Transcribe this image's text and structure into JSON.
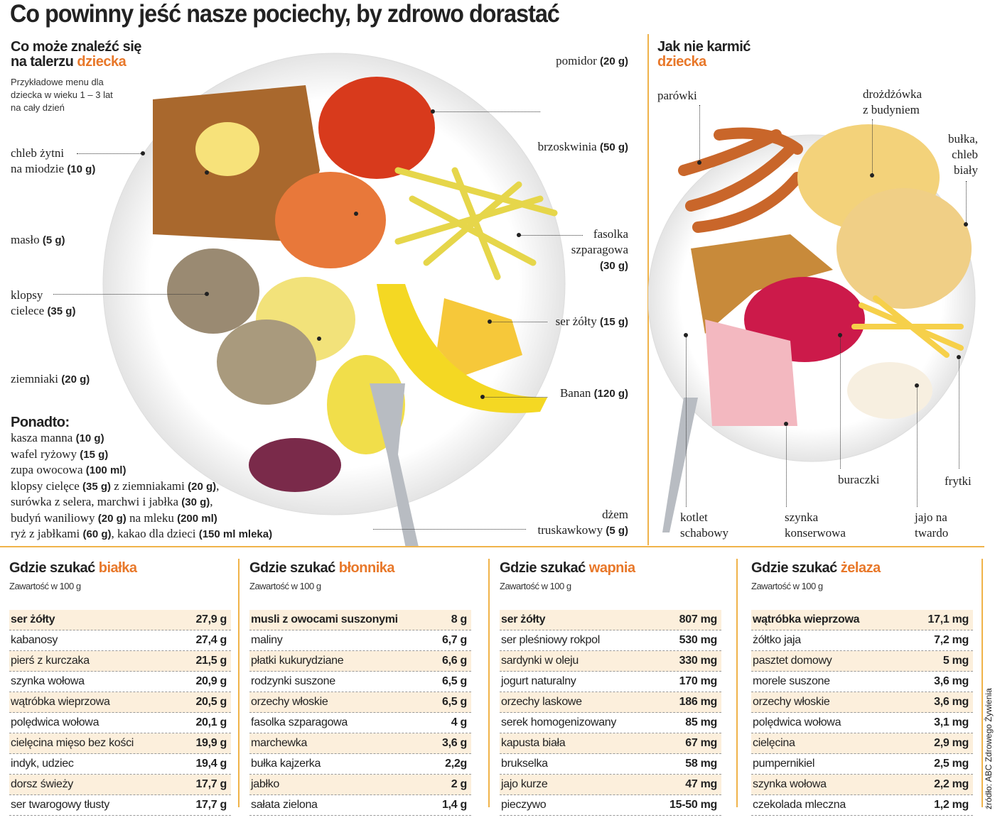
{
  "title": "Co powinny jeść nasze pociechy, by zdrowo dorastać",
  "left": {
    "heading_line1": "Co może znaleźć się",
    "heading_line2": "na talerzu ",
    "heading_accent": "dziecka",
    "subtitle": [
      "Przykładowe menu dla",
      "dziecka w wieku 1 – 3 lat",
      "na cały dzień"
    ],
    "labels": [
      {
        "text": "chleb żytni",
        "text2": "na miodzie",
        "amount": "(10 g)"
      },
      {
        "text": "masło",
        "amount": "(5 g)"
      },
      {
        "text": "klopsy",
        "text2": "cielece",
        "amount": "(35 g)"
      },
      {
        "text": "ziemniaki",
        "amount": "(20 g)"
      },
      {
        "text": "pomidor",
        "amount": "(20 g)"
      },
      {
        "text": "brzoskwinia",
        "amount": "(50 g)"
      },
      {
        "text": "fasolka",
        "text2": "szparagowa",
        "amount": "(30 g)"
      },
      {
        "text": "ser żółty",
        "amount": "(15 g)"
      },
      {
        "text": "Banan",
        "amount": "(120 g)"
      },
      {
        "text": "dżem",
        "text2": "truskawkowy",
        "amount": "(5 g)"
      }
    ],
    "extra_heading": "Ponadto:",
    "extra": [
      [
        [
          "kasza manna ",
          ""
        ],
        [
          "(10 g)",
          "b"
        ]
      ],
      [
        [
          "wafel ryżowy ",
          ""
        ],
        [
          "(15 g)",
          "b"
        ]
      ],
      [
        [
          "zupa owocowa ",
          ""
        ],
        [
          "(100 ml)",
          "b"
        ]
      ],
      [
        [
          "klopsy cielęce ",
          ""
        ],
        [
          "(35 g)",
          "b"
        ],
        [
          " z ziemniakami ",
          ""
        ],
        [
          "(20 g)",
          "b"
        ],
        [
          ",",
          ""
        ]
      ],
      [
        [
          "surówka z selera, marchwi i jabłka ",
          ""
        ],
        [
          "(30 g)",
          "b"
        ],
        [
          ",",
          ""
        ]
      ],
      [
        [
          "budyń waniliowy ",
          ""
        ],
        [
          "(20 g)",
          "b"
        ],
        [
          " na mleku ",
          ""
        ],
        [
          "(200 ml)",
          "b"
        ]
      ],
      [
        [
          "ryż z jabłkami ",
          ""
        ],
        [
          "(60 g)",
          "b"
        ],
        [
          ", kakao dla dzieci ",
          ""
        ],
        [
          "(150 ml mleka)",
          "b"
        ]
      ]
    ]
  },
  "right": {
    "heading_line1": "Jak nie karmić",
    "heading_accent": "dziecka",
    "labels": {
      "parowki": "parówki",
      "drozdzowka": [
        "drożdżówka",
        "z budyniem"
      ],
      "bulka": [
        "bułka,",
        "chleb",
        "biały"
      ],
      "buraczki": "buraczki",
      "frytki": "frytki",
      "kotlet": [
        "kotlet",
        "schabowy"
      ],
      "szynka": [
        "szynka",
        "konserwowa"
      ],
      "jajo": [
        "jajo na",
        "twardo"
      ]
    }
  },
  "tables": [
    {
      "prefix": "Gdzie szukać ",
      "accent": "białka",
      "subtitle": "Zawartość w 100 g",
      "rows": [
        [
          "ser żółty",
          "27,9 g"
        ],
        [
          "kabanosy",
          "27,4 g"
        ],
        [
          "pierś z kurczaka",
          "21,5 g"
        ],
        [
          "szynka wołowa",
          "20,9 g"
        ],
        [
          "wątróbka wieprzowa",
          "20,5 g"
        ],
        [
          "polędwica wołowa",
          "20,1 g"
        ],
        [
          "cielęcina mięso bez kości",
          "19,9 g"
        ],
        [
          "indyk, udziec",
          "19,4 g"
        ],
        [
          "dorsz świeży",
          "17,7 g"
        ],
        [
          "ser twarogowy tłusty",
          "17,7 g"
        ]
      ]
    },
    {
      "prefix": "Gdzie szukać ",
      "accent": "błonnika",
      "subtitle": "Zawartość w 100 g",
      "rows": [
        [
          "musli z owocami suszonymi",
          "8 g"
        ],
        [
          "maliny",
          "6,7 g"
        ],
        [
          "płatki kukurydziane",
          "6,6 g"
        ],
        [
          "rodzynki suszone",
          "6,5 g"
        ],
        [
          "orzechy włoskie",
          "6,5 g"
        ],
        [
          "fasolka szparagowa",
          "4 g"
        ],
        [
          "marchewka",
          "3,6 g"
        ],
        [
          "bułka kajzerka",
          "2,2g"
        ],
        [
          "jabłko",
          "2 g"
        ],
        [
          "sałata zielona",
          "1,4 g"
        ]
      ]
    },
    {
      "prefix": "Gdzie szukać ",
      "accent": "wapnia",
      "subtitle": "Zawartość w 100 g",
      "rows": [
        [
          "ser żółty",
          "807 mg"
        ],
        [
          "ser pleśniowy rokpol",
          "530 mg"
        ],
        [
          "sardynki w oleju",
          "330 mg"
        ],
        [
          "jogurt naturalny",
          "170 mg"
        ],
        [
          "orzechy laskowe",
          "186 mg"
        ],
        [
          "serek homogenizowany",
          "85 mg"
        ],
        [
          "kapusta biała",
          "67 mg"
        ],
        [
          "brukselka",
          "58 mg"
        ],
        [
          "jajo kurze",
          "47 mg"
        ],
        [
          "pieczywo",
          "15-50 mg"
        ]
      ]
    },
    {
      "prefix": "Gdzie szukać ",
      "accent": "żelaza",
      "subtitle": "Zawartość w 100 g",
      "rows": [
        [
          "wątróbka wieprzowa",
          "17,1 mg"
        ],
        [
          "żółtko jaja",
          "7,2 mg"
        ],
        [
          "pasztet domowy",
          "5 mg"
        ],
        [
          "morele suszone",
          "3,6 mg"
        ],
        [
          "orzechy włoskie",
          "3,6 mg"
        ],
        [
          "polędwica wołowa",
          "3,1 mg"
        ],
        [
          "cielęcina",
          "2,9 mg"
        ],
        [
          "pumpernikiel",
          "2,5 mg"
        ],
        [
          "szynka wołowa",
          "2,2 mg"
        ],
        [
          "czekolada mleczna",
          "1,2 mg"
        ]
      ]
    }
  ],
  "source": "źródło: ABC Zdrowego Żywienia",
  "colors": {
    "accent": "#e8782a",
    "divider": "#f0b34a",
    "row_highlight": "#fcefdc"
  }
}
